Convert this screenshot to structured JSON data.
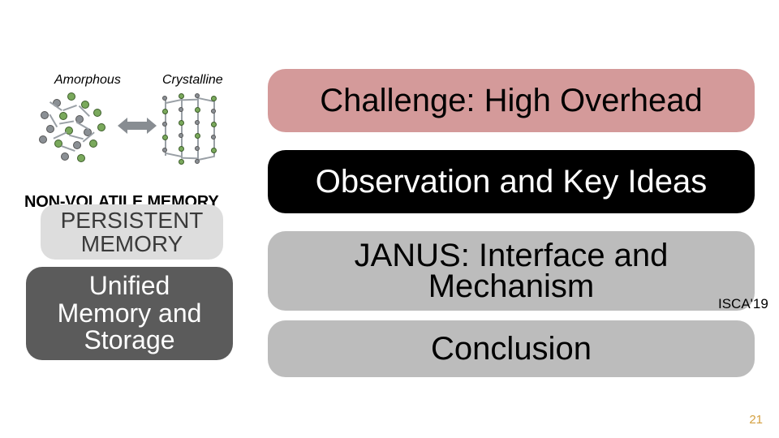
{
  "diagram": {
    "label_left": "Amorphous",
    "label_right": "Crystalline"
  },
  "left": {
    "nvmem_label": "NON-VOLATILE MEMORY",
    "persistent_memory": {
      "text": "PERSISTENT\nMEMORY",
      "bg": "#dddddd",
      "fg": "#3a3a3a",
      "fontsize": 28,
      "radius": 18
    },
    "unified": {
      "text": "Unified\nMemory and\nStorage",
      "bg": "#5b5b5b",
      "fg": "#ffffff",
      "fontsize": 32,
      "radius": 20
    }
  },
  "right": {
    "challenge": {
      "text": "Challenge: High Overhead",
      "bg": "#d49a9a",
      "fg": "#000000",
      "fontsize": 40,
      "radius": 22
    },
    "observation": {
      "text": "Observation and Key Ideas",
      "bg": "#000000",
      "fg": "#ffffff",
      "fontsize": 40,
      "radius": 22
    },
    "janus": {
      "text": "JANUS: Interface and\nMechanism",
      "bg": "#bcbcbc",
      "fg": "#000000",
      "fontsize": 40,
      "radius": 22
    },
    "conclusion": {
      "text": "Conclusion",
      "bg": "#bcbcbc",
      "fg": "#000000",
      "fontsize": 40,
      "radius": 22
    }
  },
  "venue": "ISCA'19",
  "page_number": "21",
  "colors": {
    "slide_bg": "#ffffff",
    "atom_green": "#7aa95c",
    "atom_grey": "#8a8f94",
    "arrow": "#888d92",
    "pagenum": "#d4a040"
  }
}
